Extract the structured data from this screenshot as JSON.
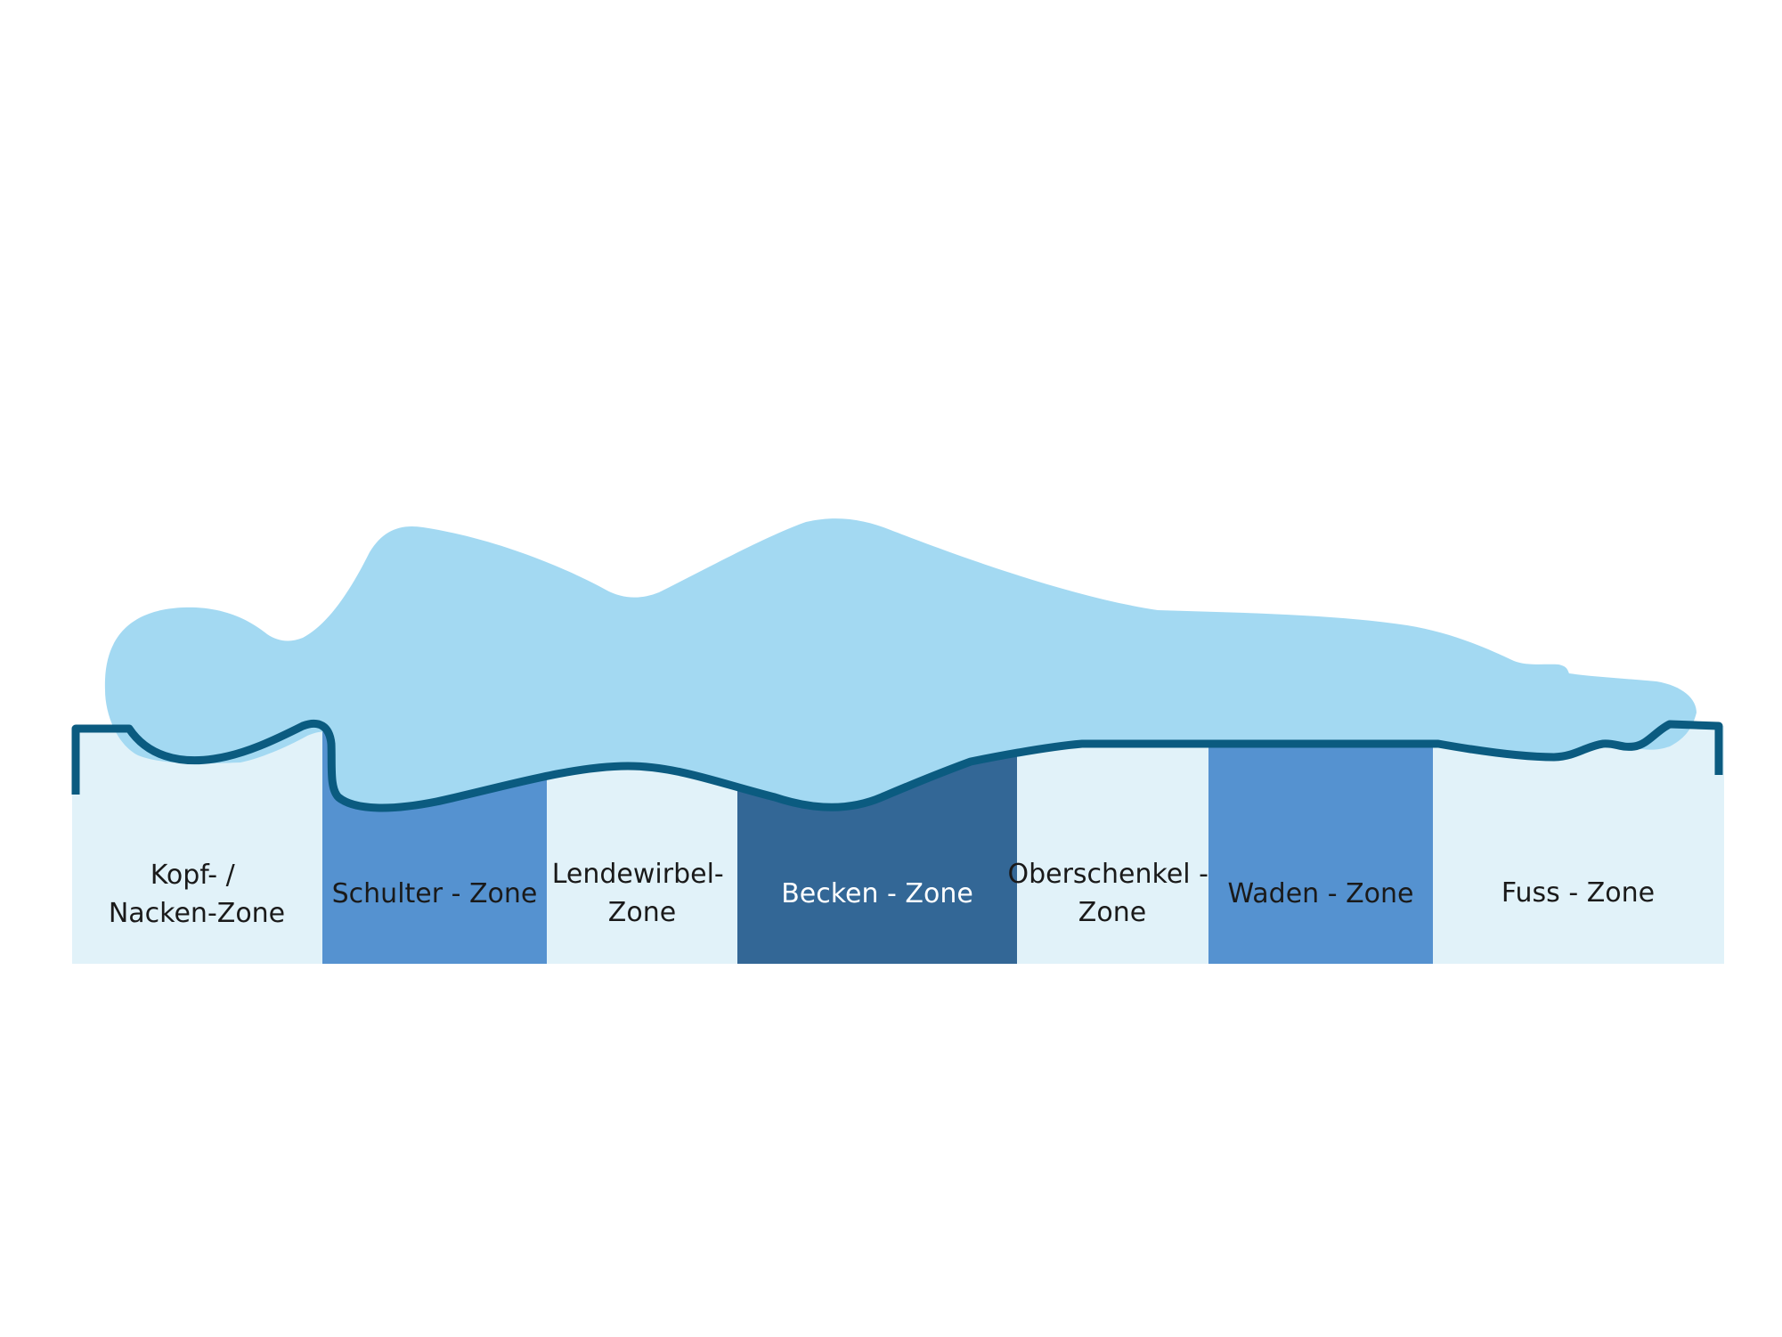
{
  "colors": {
    "background": "#ffffff",
    "body_silhouette": "#a3d9f2",
    "mattress_outline": "#0b5b80",
    "zone_light": "#e1f2f9",
    "zone_medium": "#5592d0",
    "zone_dark": "#336796",
    "text_dark": "#1a1a1a",
    "text_light": "#ffffff"
  },
  "zones": [
    {
      "id": "kopf-nacken",
      "lines": [
        "Kopf- /",
        "Nacken-Zone"
      ],
      "shade": "light"
    },
    {
      "id": "schulter",
      "lines": [
        "Schulter - Zone"
      ],
      "shade": "medium"
    },
    {
      "id": "lendenwirbel",
      "lines": [
        "Lendewirbel-",
        "Zone"
      ],
      "shade": "light"
    },
    {
      "id": "becken",
      "lines": [
        "Becken - Zone"
      ],
      "shade": "dark"
    },
    {
      "id": "oberschenkel",
      "lines": [
        "Oberschenkel -",
        "Zone"
      ],
      "shade": "light"
    },
    {
      "id": "waden",
      "lines": [
        "Waden - Zone"
      ],
      "shade": "medium"
    },
    {
      "id": "fuss",
      "lines": [
        "Fuss - Zone"
      ],
      "shade": "light"
    }
  ]
}
